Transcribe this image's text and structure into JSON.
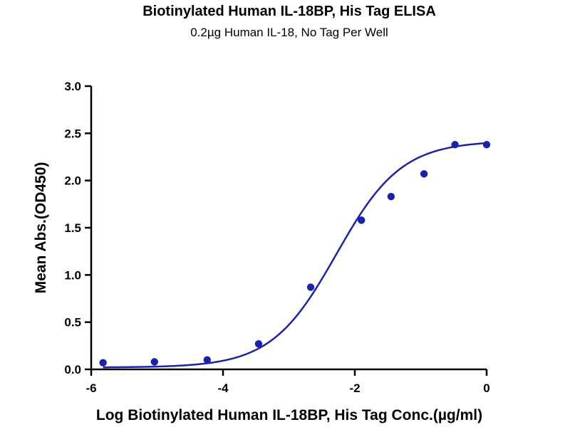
{
  "chart_data": {
    "type": "scatter",
    "title": "Biotinylated Human IL-18BP, His Tag ELISA",
    "subtitle": "0.2µg Human IL-18, No Tag Per Well",
    "xlabel": "Log Biotinylated Human IL-18BP, His Tag Conc.(µg/ml)",
    "ylabel": "Mean Abs.(OD450)",
    "xlim": [
      -6,
      0
    ],
    "ylim": [
      0,
      3.0
    ],
    "x_ticks": [
      -6,
      -4,
      -2,
      0
    ],
    "x_tick_labels": [
      "-6",
      "-4",
      "-2",
      "0"
    ],
    "y_ticks": [
      0,
      0.5,
      1.0,
      1.5,
      2.0,
      2.5,
      3.0
    ],
    "y_tick_labels": [
      "0.0",
      "0.5",
      "1.0",
      "1.5",
      "2.0",
      "2.5",
      "3.0"
    ],
    "grid": false,
    "point_color": "#1a23a8",
    "curve_color": "#1a23a8",
    "points": [
      {
        "x": -5.82,
        "y": 0.07
      },
      {
        "x": -5.04,
        "y": 0.08
      },
      {
        "x": -4.24,
        "y": 0.1
      },
      {
        "x": -3.46,
        "y": 0.27
      },
      {
        "x": -2.67,
        "y": 0.87
      },
      {
        "x": -1.9,
        "y": 1.58
      },
      {
        "x": -1.45,
        "y": 1.83
      },
      {
        "x": -0.95,
        "y": 2.07
      },
      {
        "x": -0.48,
        "y": 2.38
      },
      {
        "x": 0.0,
        "y": 2.38
      }
    ],
    "fit_curve": {
      "model": "4PL",
      "bottom": 0.02,
      "top": 2.42,
      "logEC50": -2.28,
      "hill": 0.88
    }
  }
}
